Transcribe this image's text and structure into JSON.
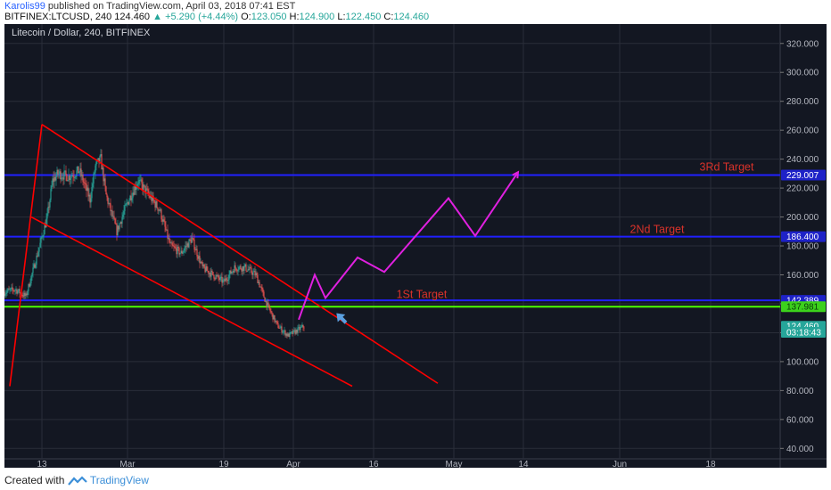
{
  "header": {
    "author": "Karolis99",
    "published_text": "published on TradingView.com, April 03, 2018 07:41 EST",
    "symbol": "BITFINEX:LTCUSD, 240",
    "last": "124.460",
    "change": "+5.290 (+4.44%)",
    "o_label": "O:",
    "o": "123.050",
    "h_label": "H:",
    "h": "124.900",
    "l_label": "L:",
    "l": "122.450",
    "c_label": "C:",
    "c": "124.460"
  },
  "footer": {
    "created_with": "Created with",
    "brand": "TradingView"
  },
  "colors": {
    "background": "#131722",
    "grid": "#2a2e39",
    "up": "#26a69a",
    "down": "#ef5350",
    "trendline": "#ff0000",
    "projection": "#e020e0",
    "target_line": "#2020ff",
    "support_line": "#4cff00",
    "arrow": "#5aa0e0"
  },
  "chart_data": {
    "type": "candlestick",
    "title": "Litecoin / Dollar, 240, BITFINEX",
    "y_ticks": [
      "320.000",
      "300.000",
      "280.000",
      "260.000",
      "240.000",
      "220.000",
      "200.000",
      "180.000",
      "160.000",
      "140.000",
      "120.000",
      "100.000",
      "80.000",
      "60.000",
      "40.000"
    ],
    "y_range": [
      40,
      320
    ],
    "x_ticks": [
      "13",
      "Mar",
      "19",
      "Apr",
      "16",
      "May",
      "14",
      "Jun",
      "18"
    ],
    "x_tick_dates": [
      "2018-02-13",
      "2018-03-01",
      "2018-03-19",
      "2018-04-01",
      "2018-04-16",
      "2018-05-01",
      "2018-05-14",
      "2018-06-01",
      "2018-06-18"
    ],
    "x_range": [
      "2018-02-06",
      "2018-07-01"
    ],
    "price_path": [
      [
        "2018-02-06",
        148
      ],
      [
        "2018-02-08",
        150
      ],
      [
        "2018-02-10",
        145
      ],
      [
        "2018-02-12",
        172
      ],
      [
        "2018-02-14",
        200
      ],
      [
        "2018-02-15",
        225
      ],
      [
        "2018-02-16",
        230
      ],
      [
        "2018-02-18",
        228
      ],
      [
        "2018-02-20",
        232
      ],
      [
        "2018-02-21",
        222
      ],
      [
        "2018-02-22",
        212
      ],
      [
        "2018-02-23",
        235
      ],
      [
        "2018-02-24",
        240
      ],
      [
        "2018-02-25",
        215
      ],
      [
        "2018-02-27",
        190
      ],
      [
        "2018-03-01",
        210
      ],
      [
        "2018-03-03",
        225
      ],
      [
        "2018-03-05",
        215
      ],
      [
        "2018-03-07",
        205
      ],
      [
        "2018-03-09",
        180
      ],
      [
        "2018-03-11",
        175
      ],
      [
        "2018-03-13",
        185
      ],
      [
        "2018-03-15",
        165
      ],
      [
        "2018-03-17",
        160
      ],
      [
        "2018-03-19",
        155
      ],
      [
        "2018-03-21",
        165
      ],
      [
        "2018-03-23",
        165
      ],
      [
        "2018-03-25",
        160
      ],
      [
        "2018-03-27",
        140
      ],
      [
        "2018-03-29",
        125
      ],
      [
        "2018-03-31",
        118
      ],
      [
        "2018-04-01",
        120
      ],
      [
        "2018-04-03",
        124.46
      ]
    ],
    "annotations": {
      "trend_lines": [
        {
          "from": [
            "2018-02-07",
            83
          ],
          "to": [
            "2018-02-13",
            264
          ]
        },
        {
          "from": [
            "2018-02-13",
            264
          ],
          "to": [
            "2018-04-28",
            85
          ]
        },
        {
          "from": [
            "2018-02-11",
            200
          ],
          "to": [
            "2018-04-12",
            83
          ]
        }
      ],
      "projection_path": [
        [
          "2018-04-02",
          129
        ],
        [
          "2018-04-05",
          160
        ],
        [
          "2018-04-07",
          144
        ],
        [
          "2018-04-13",
          172
        ],
        [
          "2018-04-18",
          162
        ],
        [
          "2018-04-30",
          213
        ],
        [
          "2018-05-05",
          187
        ],
        [
          "2018-05-13",
          231
        ]
      ],
      "horizontal_lines": [
        {
          "price": 229.007,
          "color": "target_line"
        },
        {
          "price": 186.4,
          "color": "target_line"
        },
        {
          "price": 142.389,
          "color": "target_line"
        },
        {
          "price": 137.981,
          "color": "support_line"
        }
      ],
      "target_labels": [
        {
          "text": "3Rd Target",
          "date": "2018-06-21",
          "price": 232
        },
        {
          "text": "2Nd Target",
          "date": "2018-06-08",
          "price": 189
        },
        {
          "text": "1St Target",
          "date": "2018-04-25",
          "price": 144
        }
      ],
      "arrow": {
        "date": "2018-04-10",
        "price": 130
      }
    },
    "price_labels": [
      {
        "text": "229.007",
        "price": 229.007,
        "bg": "#1e22c8",
        "fg": "#ffffff"
      },
      {
        "text": "186.400",
        "price": 186.4,
        "bg": "#1e22c8",
        "fg": "#ffffff"
      },
      {
        "text": "142.389",
        "price": 142.389,
        "bg": "#1e22c8",
        "fg": "#ffffff"
      },
      {
        "text": "137.981",
        "price": 137.981,
        "bg": "#3cd11c",
        "fg": "#0b3a0b"
      },
      {
        "text": "124.460",
        "price": 124.46,
        "bg": "#26a69a",
        "fg": "#ffffff"
      },
      {
        "text": "03:18:43",
        "price": 120.3,
        "bg": "#26a69a",
        "fg": "#ffffff"
      }
    ]
  }
}
